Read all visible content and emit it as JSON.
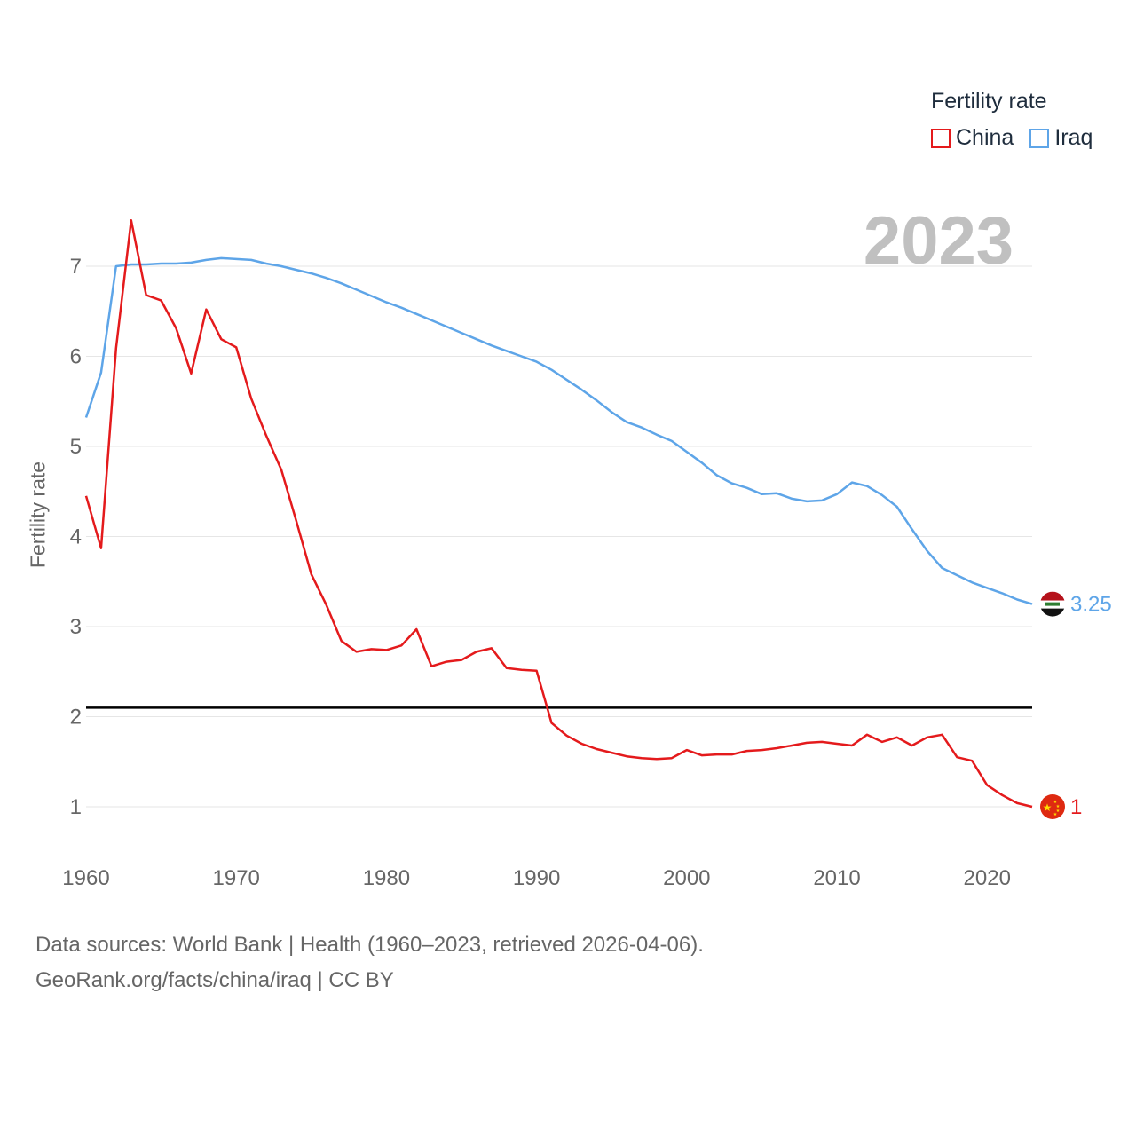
{
  "legend": {
    "title": "Fertility rate",
    "items": [
      {
        "label": "China",
        "color": "#e41a1c"
      },
      {
        "label": "Iraq",
        "color": "#5ea5e8"
      }
    ]
  },
  "year_overlay": "2023",
  "footer": {
    "line1": "Data sources: World Bank | Health (1960–2023, retrieved 2026-04-06).",
    "line2": "GeoRank.org/facts/china/iraq | CC BY"
  },
  "chart_data": {
    "type": "line",
    "title": "Fertility rate",
    "xlabel": "",
    "ylabel": "Fertility rate",
    "xlim": [
      1960,
      2023
    ],
    "ylim": [
      0.5,
      7.7
    ],
    "xticks": [
      1960,
      1970,
      1980,
      1990,
      2000,
      2010,
      2020
    ],
    "yticks": [
      1,
      2,
      3,
      4,
      5,
      6,
      7
    ],
    "grid": true,
    "reference_line": 2.1,
    "x": [
      1960,
      1961,
      1962,
      1963,
      1964,
      1965,
      1966,
      1967,
      1968,
      1969,
      1970,
      1971,
      1972,
      1973,
      1974,
      1975,
      1976,
      1977,
      1978,
      1979,
      1980,
      1981,
      1982,
      1983,
      1984,
      1985,
      1986,
      1987,
      1988,
      1989,
      1990,
      1991,
      1992,
      1993,
      1994,
      1995,
      1996,
      1997,
      1998,
      1999,
      2000,
      2001,
      2002,
      2003,
      2004,
      2005,
      2006,
      2007,
      2008,
      2009,
      2010,
      2011,
      2012,
      2013,
      2014,
      2015,
      2016,
      2017,
      2018,
      2019,
      2020,
      2021,
      2022,
      2023
    ],
    "series": [
      {
        "name": "China",
        "color": "#e41a1c",
        "end_label": "1",
        "values": [
          4.45,
          3.87,
          6.09,
          7.51,
          6.68,
          6.62,
          6.31,
          5.81,
          6.52,
          6.19,
          6.1,
          5.53,
          5.12,
          4.74,
          4.17,
          3.58,
          3.24,
          2.84,
          2.72,
          2.75,
          2.74,
          2.79,
          2.97,
          2.56,
          2.61,
          2.63,
          2.72,
          2.76,
          2.54,
          2.52,
          2.51,
          1.93,
          1.79,
          1.7,
          1.64,
          1.6,
          1.56,
          1.54,
          1.53,
          1.54,
          1.63,
          1.57,
          1.58,
          1.58,
          1.62,
          1.63,
          1.65,
          1.68,
          1.71,
          1.72,
          1.7,
          1.68,
          1.8,
          1.72,
          1.77,
          1.68,
          1.77,
          1.8,
          1.55,
          1.51,
          1.24,
          1.13,
          1.04,
          1.0
        ]
      },
      {
        "name": "Iraq",
        "color": "#5ea5e8",
        "end_label": "3.25",
        "values": [
          5.32,
          5.82,
          7.0,
          7.02,
          7.02,
          7.03,
          7.03,
          7.04,
          7.07,
          7.09,
          7.08,
          7.07,
          7.03,
          7.0,
          6.96,
          6.92,
          6.87,
          6.81,
          6.74,
          6.67,
          6.6,
          6.54,
          6.47,
          6.4,
          6.33,
          6.26,
          6.19,
          6.12,
          6.06,
          6.0,
          5.94,
          5.85,
          5.74,
          5.63,
          5.51,
          5.38,
          5.27,
          5.21,
          5.13,
          5.06,
          4.94,
          4.82,
          4.68,
          4.59,
          4.54,
          4.47,
          4.48,
          4.42,
          4.39,
          4.4,
          4.47,
          4.6,
          4.56,
          4.46,
          4.33,
          4.08,
          3.84,
          3.65,
          3.57,
          3.49,
          3.43,
          3.37,
          3.3,
          3.25
        ]
      }
    ]
  }
}
